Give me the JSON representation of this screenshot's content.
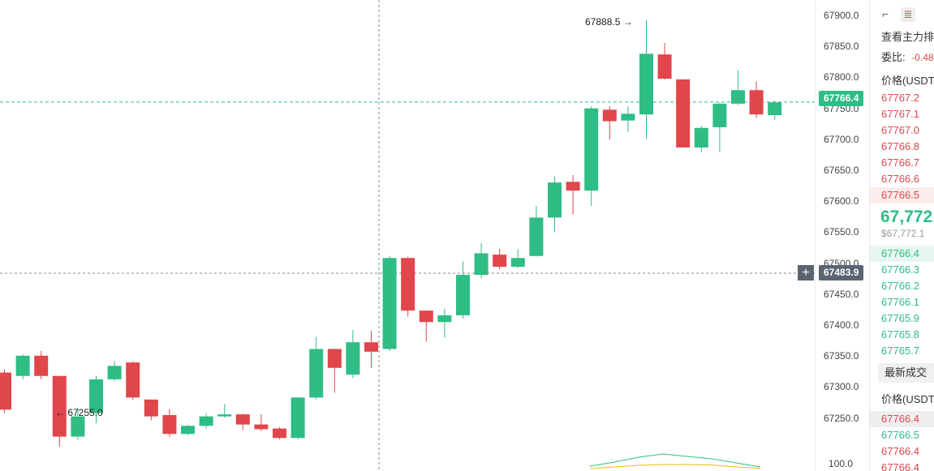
{
  "chart": {
    "ticks": [
      "67900.0",
      "67850.0",
      "67800.0",
      "67750.0",
      "67700.0",
      "67650.0",
      "67600.0",
      "67550.0",
      "67500.0",
      "67450.0",
      "67400.0",
      "67350.0",
      "67300.0",
      "67250.0"
    ],
    "current_price_tag": "67766.4",
    "crosshair_price_tag": "67483.9",
    "high_annotation": "67888.5 →",
    "low_annotation": "← 67255.0",
    "volume_axis_label": "100.0",
    "colors": {
      "up": "#2ebd85",
      "down": "#e0464b",
      "volume_line_1": "#2ebd85",
      "volume_line_2": "#f0b90b"
    }
  },
  "chart_data": {
    "type": "candlestick",
    "candles": [
      {
        "o": 67365,
        "c": 67310,
        "h": 67370,
        "l": 67305
      },
      {
        "o": 67360,
        "c": 67390,
        "h": 67392,
        "l": 67355
      },
      {
        "o": 67390,
        "c": 67360,
        "h": 67397,
        "l": 67355
      },
      {
        "o": 67360,
        "c": 67270,
        "h": 67360,
        "l": 67255
      },
      {
        "o": 67270,
        "c": 67300,
        "h": 67313,
        "l": 67265
      },
      {
        "o": 67305,
        "c": 67355,
        "h": 67360,
        "l": 67290
      },
      {
        "o": 67355,
        "c": 67375,
        "h": 67382,
        "l": 67352
      },
      {
        "o": 67380,
        "c": 67328,
        "h": 67382,
        "l": 67325
      },
      {
        "o": 67325,
        "c": 67300,
        "h": 67325,
        "l": 67294
      },
      {
        "o": 67302,
        "c": 67274,
        "h": 67311,
        "l": 67270
      },
      {
        "o": 67274,
        "c": 67286,
        "h": 67287,
        "l": 67272
      },
      {
        "o": 67286,
        "c": 67300,
        "h": 67304,
        "l": 67282
      },
      {
        "o": 67300,
        "c": 67303,
        "h": 67318,
        "l": 67298
      },
      {
        "o": 67303,
        "c": 67288,
        "h": 67304,
        "l": 67280
      },
      {
        "o": 67288,
        "c": 67281,
        "h": 67303,
        "l": 67278
      },
      {
        "o": 67282,
        "c": 67268,
        "h": 67284,
        "l": 67266
      },
      {
        "o": 67268,
        "c": 67328,
        "h": 67329,
        "l": 67266
      },
      {
        "o": 67328,
        "c": 67400,
        "h": 67418,
        "l": 67325
      },
      {
        "o": 67400,
        "c": 67372,
        "h": 67400,
        "l": 67335
      },
      {
        "o": 67362,
        "c": 67410,
        "h": 67428,
        "l": 67357
      },
      {
        "o": 67410,
        "c": 67396,
        "h": 67427,
        "l": 67372
      },
      {
        "o": 67400,
        "c": 67535,
        "h": 67538,
        "l": 67397
      },
      {
        "o": 67535,
        "c": 67457,
        "h": 67537,
        "l": 67448
      },
      {
        "o": 67457,
        "c": 67440,
        "h": 67457,
        "l": 67411
      },
      {
        "o": 67440,
        "c": 67450,
        "h": 67460,
        "l": 67417
      },
      {
        "o": 67450,
        "c": 67510,
        "h": 67530,
        "l": 67445
      },
      {
        "o": 67510,
        "c": 67542,
        "h": 67557,
        "l": 67505
      },
      {
        "o": 67540,
        "c": 67522,
        "h": 67549,
        "l": 67518
      },
      {
        "o": 67522,
        "c": 67535,
        "h": 67548,
        "l": 67520
      },
      {
        "o": 67538,
        "c": 67595,
        "h": 67612,
        "l": 67537
      },
      {
        "o": 67595,
        "c": 67647,
        "h": 67656,
        "l": 67573
      },
      {
        "o": 67648,
        "c": 67635,
        "h": 67658,
        "l": 67600
      },
      {
        "o": 67635,
        "c": 67757,
        "h": 67760,
        "l": 67612
      },
      {
        "o": 67755,
        "c": 67738,
        "h": 67760,
        "l": 67711
      },
      {
        "o": 67739,
        "c": 67749,
        "h": 67760,
        "l": 67722
      },
      {
        "o": 67748,
        "c": 67838,
        "h": 67888,
        "l": 67712
      },
      {
        "o": 67837,
        "c": 67801,
        "h": 67854,
        "l": 67800
      },
      {
        "o": 67800,
        "c": 67699,
        "h": 67800,
        "l": 67699
      },
      {
        "o": 67699,
        "c": 67728,
        "h": 67731,
        "l": 67692
      },
      {
        "o": 67729,
        "c": 67764,
        "h": 67765,
        "l": 67692
      },
      {
        "o": 67764,
        "c": 67784,
        "h": 67814,
        "l": 67762
      },
      {
        "o": 67784,
        "c": 67748,
        "h": 67797,
        "l": 67743
      },
      {
        "o": 67747,
        "c": 67766,
        "h": 67768,
        "l": 67740
      }
    ],
    "ylim": [
      67225,
      67925
    ],
    "volume_series": [
      {
        "color": "#2ebd85",
        "values": [
          0.25,
          0.5,
          0.8,
          1.0,
          0.85,
          0.7,
          0.45,
          0.2
        ]
      },
      {
        "color": "#f0b90b",
        "values": [
          0.1,
          0.2,
          0.3,
          0.35,
          0.35,
          0.32,
          0.2,
          0.12
        ]
      }
    ]
  },
  "book": {
    "title": "查看主力排",
    "ratio_label": "委比:",
    "ratio_value": "-0.48",
    "price_header": "价格(USDT",
    "asks": [
      "67767.2",
      "67767.1",
      "67767.0",
      "67766.8",
      "67766.7",
      "67766.6",
      "67766.5"
    ],
    "last_price": "67,772.",
    "last_price_usd": "$67,772.1",
    "bids": [
      "67766.4",
      "67766.3",
      "67766.2",
      "67766.1",
      "67765.9",
      "67765.8",
      "67765.7"
    ],
    "latest_trades_button": "最新成交",
    "trades_price_header": "价格(USDT",
    "trades": [
      {
        "price": "67766.4",
        "side": "ask",
        "hl": "grey"
      },
      {
        "price": "67766.5",
        "side": "bid",
        "hl": ""
      },
      {
        "price": "67766.4",
        "side": "ask",
        "hl": ""
      },
      {
        "price": "67766.4",
        "side": "ask",
        "hl": ""
      }
    ]
  }
}
